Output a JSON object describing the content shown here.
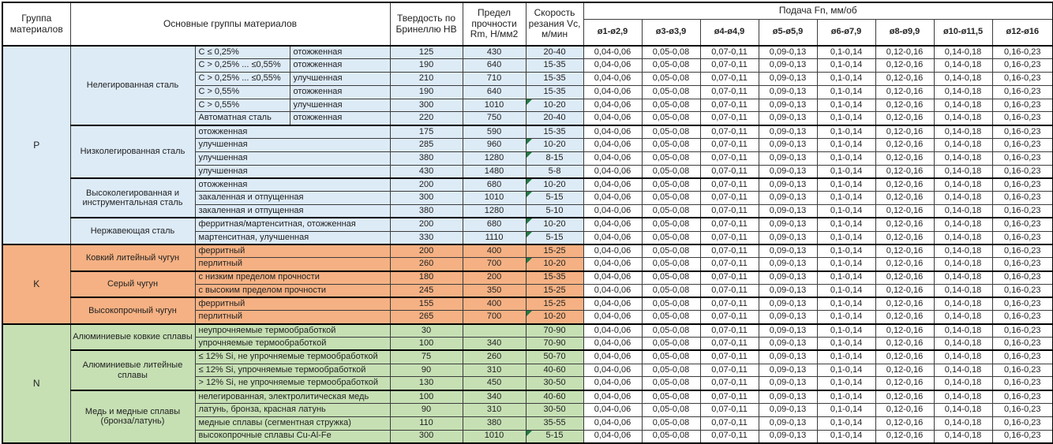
{
  "header": {
    "col_group": "Группа материалов",
    "col_materials": "Основные группы материалов",
    "col_hb": "Твердость по Бринеллю HB",
    "col_rm": "Предел прочности Rm, Н/мм2",
    "col_vc": "Скорость резания Vc, м/мин",
    "col_feed": "Подача Fn, мм/об",
    "feed_cols": [
      "ø1-ø2,9",
      "ø3-ø3,9",
      "ø4-ø4,9",
      "ø5-ø5,9",
      "ø6-ø7,9",
      "ø8-ø9,9",
      "ø10-ø11,5",
      "ø12-ø16"
    ]
  },
  "feed_values": [
    "0,04-0,06",
    "0,05-0,08",
    "0,07-0,11",
    "0,09-0,13",
    "0,1-0,14",
    "0,12-0,16",
    "0,14-0,18",
    "0,16-0,23"
  ],
  "colors": {
    "group_p": "#DDEBF7",
    "group_k": "#F5B183",
    "group_n": "#C6E0B4",
    "flag": "#1f7a42"
  },
  "groups": [
    {
      "letter": "P",
      "color": "#DDEBF7",
      "subgroups": [
        {
          "name": "Нелегированная сталь",
          "rows": [
            {
              "d1": "C ≤ 0,25%",
              "d2": "отожженная",
              "hb": "125",
              "rm": "430",
              "vc": "20-40",
              "flag": false
            },
            {
              "d1": "C > 0,25% ... ≤0,55%",
              "d2": "отожженная",
              "hb": "190",
              "rm": "640",
              "vc": "15-35",
              "flag": false
            },
            {
              "d1": "C > 0,25% ... ≤0,55%",
              "d2": "улучшенная",
              "hb": "210",
              "rm": "710",
              "vc": "15-35",
              "flag": false
            },
            {
              "d1": "C > 0,55%",
              "d2": "отожженная",
              "hb": "190",
              "rm": "640",
              "vc": "15-35",
              "flag": false
            },
            {
              "d1": "C > 0,55%",
              "d2": "улучшенная",
              "hb": "300",
              "rm": "1010",
              "vc": "10-20",
              "flag": true
            },
            {
              "d1": "Автоматная сталь",
              "d2": "отожженная",
              "hb": "220",
              "rm": "750",
              "vc": "20-40",
              "flag": false
            }
          ]
        },
        {
          "name": "Низколегированная сталь",
          "rows": [
            {
              "d": "отожженная",
              "hb": "175",
              "rm": "590",
              "vc": "15-35",
              "flag": false
            },
            {
              "d": "улучшенная",
              "hb": "285",
              "rm": "960",
              "vc": "10-20",
              "flag": true
            },
            {
              "d": "улучшенная",
              "hb": "380",
              "rm": "1280",
              "vc": "8-15",
              "flag": true
            },
            {
              "d": "улучшенная",
              "hb": "430",
              "rm": "1480",
              "vc": "5-8",
              "flag": false
            }
          ]
        },
        {
          "name": "Высоколегированная и инструментальная сталь",
          "rows": [
            {
              "d": "отожженная",
              "hb": "200",
              "rm": "680",
              "vc": "10-20",
              "flag": true
            },
            {
              "d": "закаленная и отпущенная",
              "hb": "300",
              "rm": "1010",
              "vc": "5-15",
              "flag": true
            },
            {
              "d": "закаленная и отпущенная",
              "hb": "380",
              "rm": "1280",
              "vc": "5-10",
              "flag": false
            }
          ]
        },
        {
          "name": "Нержавеющая сталь",
          "rows": [
            {
              "d": "ферритная/мартенситная, отожженная",
              "hb": "200",
              "rm": "680",
              "vc": "10-20",
              "flag": true
            },
            {
              "d": "мартенситная, улучшенная",
              "hb": "330",
              "rm": "1110",
              "vc": "5-15",
              "flag": true
            }
          ]
        }
      ]
    },
    {
      "letter": "K",
      "color": "#F5B183",
      "subgroups": [
        {
          "name": "Ковкий литейный чугун",
          "rows": [
            {
              "d": "ферритный",
              "hb": "200",
              "rm": "400",
              "vc": "15-25",
              "flag": false
            },
            {
              "d": "перлитный",
              "hb": "260",
              "rm": "700",
              "vc": "10-20",
              "flag": true
            }
          ]
        },
        {
          "name": "Серый чугун",
          "rows": [
            {
              "d": "с низким пределом прочности",
              "hb": "180",
              "rm": "200",
              "vc": "15-35",
              "flag": false
            },
            {
              "d": "с высоким пределом прочности",
              "hb": "245",
              "rm": "350",
              "vc": "15-25",
              "flag": false
            }
          ]
        },
        {
          "name": "Высокопрочный чугун",
          "rows": [
            {
              "d": "ферритный",
              "hb": "155",
              "rm": "400",
              "vc": "15-25",
              "flag": false
            },
            {
              "d": "перлитный",
              "hb": "265",
              "rm": "700",
              "vc": "10-20",
              "flag": true
            }
          ]
        }
      ]
    },
    {
      "letter": "N",
      "color": "#C6E0B4",
      "subgroups": [
        {
          "name": "Алюминиевые ковкие сплавы",
          "rows": [
            {
              "d": "неупрочняемые термообработкой",
              "hb": "30",
              "rm": "",
              "vc": "70-90",
              "flag": false
            },
            {
              "d": "упрочняемые термообработкой",
              "hb": "100",
              "rm": "340",
              "vc": "70-90",
              "flag": false
            }
          ]
        },
        {
          "name": "Алюминиевые литейные сплавы",
          "rows": [
            {
              "d": "≤ 12% Si, не упрочняемые термообработкой",
              "hb": "75",
              "rm": "260",
              "vc": "50-70",
              "flag": false
            },
            {
              "d": "≤ 12% Si, упрочняемые термообработкой",
              "hb": "90",
              "rm": "310",
              "vc": "40-60",
              "flag": false
            },
            {
              "d": "> 12% Si, не упрочняемые термообработкой",
              "hb": "130",
              "rm": "450",
              "vc": "30-50",
              "flag": false
            }
          ]
        },
        {
          "name": "Медь и медные сплавы (бронза/латунь)",
          "rows": [
            {
              "d": "нелегированная, электролитическая медь",
              "hb": "100",
              "rm": "340",
              "vc": "40-60",
              "flag": false
            },
            {
              "d": "латунь, бронза, красная латунь",
              "hb": "90",
              "rm": "310",
              "vc": "30-50",
              "flag": false
            },
            {
              "d": "медные сплавы (сегментная стружка)",
              "hb": "110",
              "rm": "380",
              "vc": "35-55",
              "flag": false
            },
            {
              "d": "высокопрочные сплавы Cu-Al-Fe",
              "hb": "300",
              "rm": "1010",
              "vc": "5-15",
              "flag": true
            }
          ]
        }
      ]
    }
  ]
}
